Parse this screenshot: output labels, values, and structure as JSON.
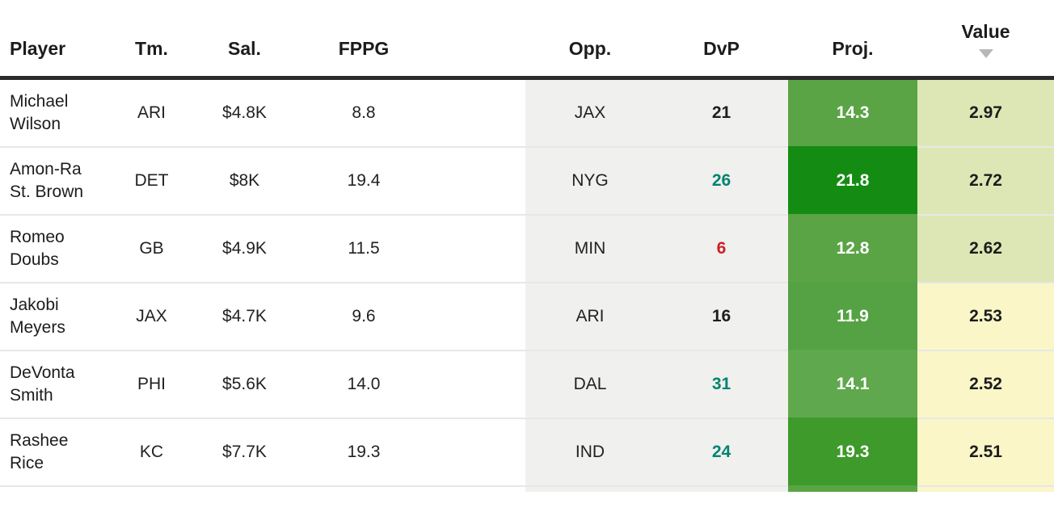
{
  "palette": {
    "header_text": "#1c1c1c",
    "header_border": "#2b2b2b",
    "row_border": "#e7e7e6",
    "sort_arrow": "#b7b7b7",
    "matchup_gray_bg": "#f0f0ee",
    "dvp_good_teal": "#00846e",
    "dvp_bad_red": "#cb2026",
    "dvp_neutral": "#1e1e1e",
    "proj_green_medium": "#5aa445",
    "proj_green_dark": "#148c14",
    "proj_green_deep": "#3e9a2b",
    "value_sage_bg": "#dde7b5",
    "value_yellow_bg": "#faf6c8"
  },
  "table": {
    "columns": {
      "player": "Player",
      "tm": "Tm.",
      "sal": "Sal.",
      "fppg": "FPPG",
      "opp": "Opp.",
      "dvp": "DvP",
      "proj": "Proj.",
      "value": "Value"
    },
    "sort": {
      "column": "Value",
      "direction": "desc"
    },
    "rows": [
      {
        "player": "Michael Wilson",
        "tm": "ARI",
        "sal": "$4.8K",
        "fppg": "8.8",
        "opp": "JAX",
        "dvp": "21",
        "dvp_color": "#1e1e1e",
        "proj": "14.3",
        "proj_bg": "#5aa445",
        "value": "2.97",
        "value_bg": "#dde7b5"
      },
      {
        "player": "Amon-Ra St. Brown",
        "tm": "DET",
        "sal": "$8K",
        "fppg": "19.4",
        "opp": "NYG",
        "dvp": "26",
        "dvp_color": "#00846e",
        "proj": "21.8",
        "proj_bg": "#148c14",
        "value": "2.72",
        "value_bg": "#dde7b5"
      },
      {
        "player": "Romeo Doubs",
        "tm": "GB",
        "sal": "$4.9K",
        "fppg": "11.5",
        "opp": "MIN",
        "dvp": "6",
        "dvp_color": "#cb2026",
        "proj": "12.8",
        "proj_bg": "#5aa445",
        "value": "2.62",
        "value_bg": "#dde7b5"
      },
      {
        "player": "Jakobi Meyers",
        "tm": "JAX",
        "sal": "$4.7K",
        "fppg": "9.6",
        "opp": "ARI",
        "dvp": "16",
        "dvp_color": "#1e1e1e",
        "proj": "11.9",
        "proj_bg": "#55a244",
        "value": "2.53",
        "value_bg": "#faf6c8"
      },
      {
        "player": "DeVonta Smith",
        "tm": "PHI",
        "sal": "$5.6K",
        "fppg": "14.0",
        "opp": "DAL",
        "dvp": "31",
        "dvp_color": "#00846e",
        "proj": "14.1",
        "proj_bg": "#5fa84d",
        "value": "2.52",
        "value_bg": "#faf6c8"
      },
      {
        "player": "Rashee Rice",
        "tm": "KC",
        "sal": "$7.7K",
        "fppg": "19.3",
        "opp": "IND",
        "dvp": "24",
        "dvp_color": "#00846e",
        "proj": "19.3",
        "proj_bg": "#3e9a2b",
        "value": "2.51",
        "value_bg": "#faf6c8"
      }
    ]
  }
}
